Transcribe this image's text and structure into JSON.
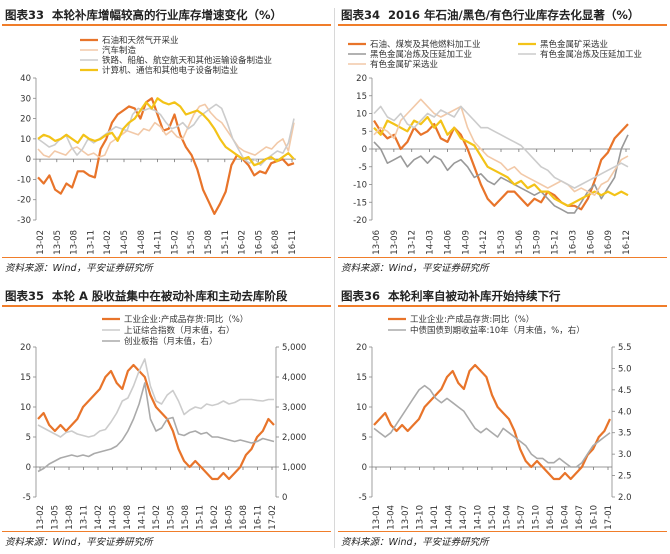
{
  "panels": [
    {
      "figure_no": "图表33",
      "title": "本轮补库增幅较高的行业库存增速变化（%）",
      "source": "资料来源：Wind，平安证券研究所",
      "chart_data": {
        "type": "line",
        "x_labels": [
          "13-02",
          "13-05",
          "13-08",
          "13-11",
          "14-02",
          "14-05",
          "14-08",
          "14-11",
          "15-02",
          "15-05",
          "15-08",
          "15-11",
          "16-02",
          "16-05",
          "16-08",
          "16-11"
        ],
        "ylim": [
          -30,
          40
        ],
        "yticks": [
          -30,
          -20,
          -10,
          0,
          10,
          20,
          30,
          40
        ],
        "series": [
          {
            "name": "石油和天然气开采业",
            "color": "#e8742a",
            "width": 2.2,
            "values": [
              -9,
              -12,
              -8,
              -15,
              -17,
              -12,
              -14,
              -6,
              -6,
              -8,
              -9,
              5,
              10,
              18,
              22,
              24,
              26,
              25,
              20,
              28,
              30,
              22,
              14,
              15,
              22,
              12,
              6,
              2,
              -5,
              -15,
              -21,
              -27,
              -22,
              -16,
              -3,
              2,
              0,
              -3,
              -8,
              -6,
              -7,
              -2,
              -1,
              0,
              -3,
              -2
            ]
          },
          {
            "name": "汽车制造",
            "color": "#f2c9a8",
            "width": 1.6,
            "values": [
              5,
              2,
              1,
              4,
              3,
              2,
              5,
              6,
              4,
              2,
              3,
              1,
              2,
              8,
              10,
              12,
              14,
              13,
              12,
              15,
              14,
              18,
              16,
              12,
              14,
              11,
              10,
              16,
              22,
              26,
              27,
              23,
              20,
              18,
              14,
              10,
              6,
              4,
              3,
              2,
              4,
              6,
              5,
              8,
              10,
              4,
              18
            ]
          },
          {
            "name": "铁路、船舶、航空航天和其他运输设备制造业",
            "color": "#cccccc",
            "width": 1.6,
            "values": [
              10,
              8,
              6,
              7,
              10,
              12,
              6,
              2,
              5,
              10,
              8,
              10,
              12,
              14,
              16,
              15,
              14,
              22,
              25,
              24,
              25,
              24,
              22,
              18,
              15,
              16,
              18,
              15,
              17,
              21,
              23,
              25,
              27,
              25,
              18,
              10,
              5,
              0,
              -2,
              0,
              -3,
              0,
              2,
              4,
              3,
              8,
              20
            ]
          },
          {
            "name": "计算机、通信和其他电子设备制造业",
            "color": "#f3c318",
            "width": 2.2,
            "values": [
              10,
              12,
              11,
              9,
              10,
              12,
              10,
              8,
              12,
              10,
              9,
              10,
              12,
              13,
              9,
              15,
              18,
              20,
              24,
              28,
              25,
              30,
              28,
              27,
              28,
              26,
              22,
              23,
              24,
              22,
              19,
              15,
              10,
              6,
              4,
              2,
              0,
              1,
              -3,
              -2,
              0,
              1,
              -1,
              1,
              3,
              0
            ]
          }
        ]
      }
    },
    {
      "figure_no": "图表34",
      "title": "2016 年石油/黑色/有色行业库存去化显著（%）",
      "source": "资料来源：Wind，平安证券研究所",
      "chart_data": {
        "type": "line",
        "x_labels": [
          "13-06",
          "13-09",
          "13-12",
          "14-03",
          "14-06",
          "14-09",
          "14-12",
          "15-03",
          "15-06",
          "15-09",
          "15-12",
          "16-03",
          "16-06",
          "16-09",
          "16-12"
        ],
        "ylim": [
          -20,
          20
        ],
        "yticks": [
          -20,
          -15,
          -10,
          -5,
          0,
          5,
          10,
          15,
          20
        ],
        "series": [
          {
            "name": "石油、煤炭及其他燃料加工业",
            "color": "#e8742a",
            "width": 2.2,
            "values": [
              8,
              5,
              3,
              4,
              0,
              2,
              6,
              4,
              5,
              7,
              3,
              2,
              6,
              4,
              0,
              -5,
              -10,
              -14,
              -16,
              -14,
              -12,
              -12,
              -14,
              -16,
              -14,
              -15,
              -12,
              -13,
              -15,
              -16,
              -16,
              -17,
              -14,
              -9,
              -3,
              -1,
              3,
              5,
              7
            ]
          },
          {
            "name": "黑色金属冶炼及压延加工业",
            "color": "#999999",
            "width": 1.6,
            "values": [
              2,
              0,
              -4,
              -3,
              -2,
              -5,
              -3,
              -2,
              -4,
              -2,
              -3,
              -6,
              -4,
              -3,
              -5,
              -8,
              -7,
              -9,
              -10,
              -8,
              -9,
              -10,
              -11,
              -12,
              -13,
              -12,
              -14,
              -16,
              -17,
              -18,
              -18,
              -15,
              -12,
              -10,
              -14,
              -11,
              -8,
              0,
              4
            ]
          },
          {
            "name": "黑色金属矿采选业",
            "color": "#f3c318",
            "width": 2.2,
            "values": [
              6,
              4,
              8,
              7,
              6,
              5,
              8,
              7,
              9,
              6,
              8,
              4,
              6,
              3,
              2,
              1,
              -2,
              -5,
              -6,
              -7,
              -8,
              -10,
              -9,
              -11,
              -10,
              -12,
              -12,
              -14,
              -15,
              -16,
              -15,
              -14,
              -13,
              -12,
              -13,
              -12,
              -13,
              -12,
              -13
            ]
          },
          {
            "name": "有色金属矿采选业",
            "color": "#f2c9a8",
            "width": 1.6,
            "values": [
              4,
              6,
              5,
              3,
              8,
              10,
              12,
              14,
              12,
              10,
              9,
              10,
              11,
              12,
              6,
              2,
              0,
              -2,
              -3,
              -4,
              -6,
              -5,
              -7,
              -8,
              -9,
              -10,
              -11,
              -10,
              -9,
              -10,
              -12,
              -11,
              -12,
              -13,
              -10,
              -9,
              -6,
              -3,
              -2
            ]
          },
          {
            "name": "有色金属冶炼及压延加工业",
            "color": "#cccccc",
            "width": 1.6,
            "values": [
              10,
              12,
              9,
              8,
              10,
              7,
              6,
              8,
              10,
              9,
              11,
              10,
              9,
              12,
              10,
              8,
              6,
              6,
              5,
              4,
              3,
              2,
              1,
              -1,
              -3,
              -5,
              -6,
              -8,
              -9,
              -10,
              -11,
              -10,
              -9,
              -8,
              -7,
              -6,
              -5,
              -4,
              -5
            ]
          }
        ]
      }
    },
    {
      "figure_no": "图表35",
      "title": "本轮 A 股收益集中在被动补库和主动去库阶段",
      "source": "资料来源：Wind，平安证券研究所",
      "chart_data": {
        "type": "line",
        "x_labels": [
          "13-02",
          "13-05",
          "13-08",
          "13-11",
          "14-02",
          "14-05",
          "14-08",
          "14-11",
          "15-02",
          "15-05",
          "15-08",
          "15-11",
          "16-02",
          "16-05",
          "16-08",
          "16-11",
          "17-02"
        ],
        "ylim_left": [
          -5,
          20
        ],
        "yticks_left": [
          -5,
          0,
          5,
          10,
          15,
          20
        ],
        "ylim_right": [
          0,
          5000
        ],
        "yticks_right": [
          "0",
          "1,000",
          "2,000",
          "3,000",
          "4,000",
          "5,000"
        ],
        "series": [
          {
            "name": "工业企业:产成品存货:同比（%）",
            "axis": "left",
            "color": "#e8742a",
            "width": 2.2,
            "values": [
              8,
              9,
              7,
              6,
              7,
              6,
              7,
              8,
              10,
              11,
              12,
              13,
              15,
              16,
              14,
              13,
              16,
              17,
              16,
              15,
              12,
              10,
              9,
              8,
              6,
              3,
              1,
              0,
              1,
              0,
              -1,
              -2,
              -2,
              -1,
              -2,
              -1,
              0,
              2,
              3,
              5,
              6,
              8,
              7
            ]
          },
          {
            "name": "上证综合指数（月末值，右）",
            "axis": "right",
            "color": "#cccccc",
            "width": 1.6,
            "values": [
              2400,
              2300,
              2200,
              2100,
              2000,
              2150,
              2200,
              2100,
              2050,
              2000,
              2050,
              2200,
              2250,
              2500,
              2800,
              3200,
              3300,
              3700,
              4200,
              4600,
              3700,
              3200,
              3100,
              3400,
              3550,
              3200,
              2750,
              2900,
              3000,
              2950,
              3100,
              3050,
              3100,
              3200,
              3100,
              3150,
              3250,
              3250,
              3250,
              3220,
              3200,
              3250,
              3250
            ]
          },
          {
            "name": "创业板指（月末值，右）",
            "axis": "right",
            "color": "#aaaaaa",
            "width": 1.6,
            "values": [
              850,
              950,
              1100,
              1200,
              1300,
              1350,
              1400,
              1350,
              1400,
              1350,
              1450,
              1500,
              1550,
              1600,
              1700,
              1900,
              2200,
              2600,
              3100,
              3800,
              2600,
              2200,
              2300,
              2600,
              2650,
              2100,
              2050,
              2150,
              2200,
              2100,
              2150,
              2000,
              2000,
              1950,
              1900,
              1850,
              1900,
              1850,
              1800,
              1850,
              1950,
              1900,
              1850
            ]
          }
        ]
      }
    },
    {
      "figure_no": "图表36",
      "title": "本轮利率自被动补库开始持续下行",
      "source": "资料来源：Wind，平安证券研究所",
      "chart_data": {
        "type": "line",
        "x_labels": [
          "13-01",
          "13-04",
          "13-07",
          "13-10",
          "14-01",
          "14-04",
          "14-07",
          "14-10",
          "15-01",
          "15-04",
          "15-07",
          "15-10",
          "16-01",
          "16-04",
          "16-07",
          "16-10",
          "17-01"
        ],
        "ylim_left": [
          -5,
          20
        ],
        "yticks_left": [
          -5,
          0,
          5,
          10,
          15,
          20
        ],
        "ylim_right": [
          2.0,
          5.5
        ],
        "yticks_right": [
          "2.0",
          "2.5",
          "3.0",
          "3.5",
          "4.0",
          "4.5",
          "5.0",
          "5.5"
        ],
        "series": [
          {
            "name": "工业企业:产成品存货:同比（%）",
            "axis": "left",
            "color": "#e8742a",
            "width": 2.2,
            "values": [
              7,
              8,
              9,
              7,
              6,
              7,
              6,
              7,
              8,
              10,
              11,
              12,
              13,
              15,
              16,
              14,
              13,
              16,
              17,
              16,
              15,
              12,
              10,
              9,
              8,
              6,
              3,
              1,
              0,
              1,
              0,
              -1,
              -2,
              -2,
              -1,
              -2,
              -1,
              0,
              2,
              3,
              5,
              6,
              8
            ]
          },
          {
            "name": "中债国债到期收益率:10年（月末值，%，右）",
            "axis": "right",
            "color": "#aaaaaa",
            "width": 1.6,
            "values": [
              3.6,
              3.5,
              3.4,
              3.5,
              3.7,
              3.9,
              4.1,
              4.3,
              4.5,
              4.6,
              4.5,
              4.3,
              4.2,
              4.3,
              4.2,
              4.1,
              4.0,
              3.8,
              3.6,
              3.5,
              3.6,
              3.5,
              3.4,
              3.6,
              3.5,
              3.4,
              3.3,
              3.2,
              3.0,
              2.9,
              2.9,
              2.8,
              2.8,
              2.9,
              2.8,
              2.7,
              2.7,
              2.8,
              3.0,
              3.2,
              3.3,
              3.4,
              3.5
            ]
          }
        ]
      }
    }
  ]
}
